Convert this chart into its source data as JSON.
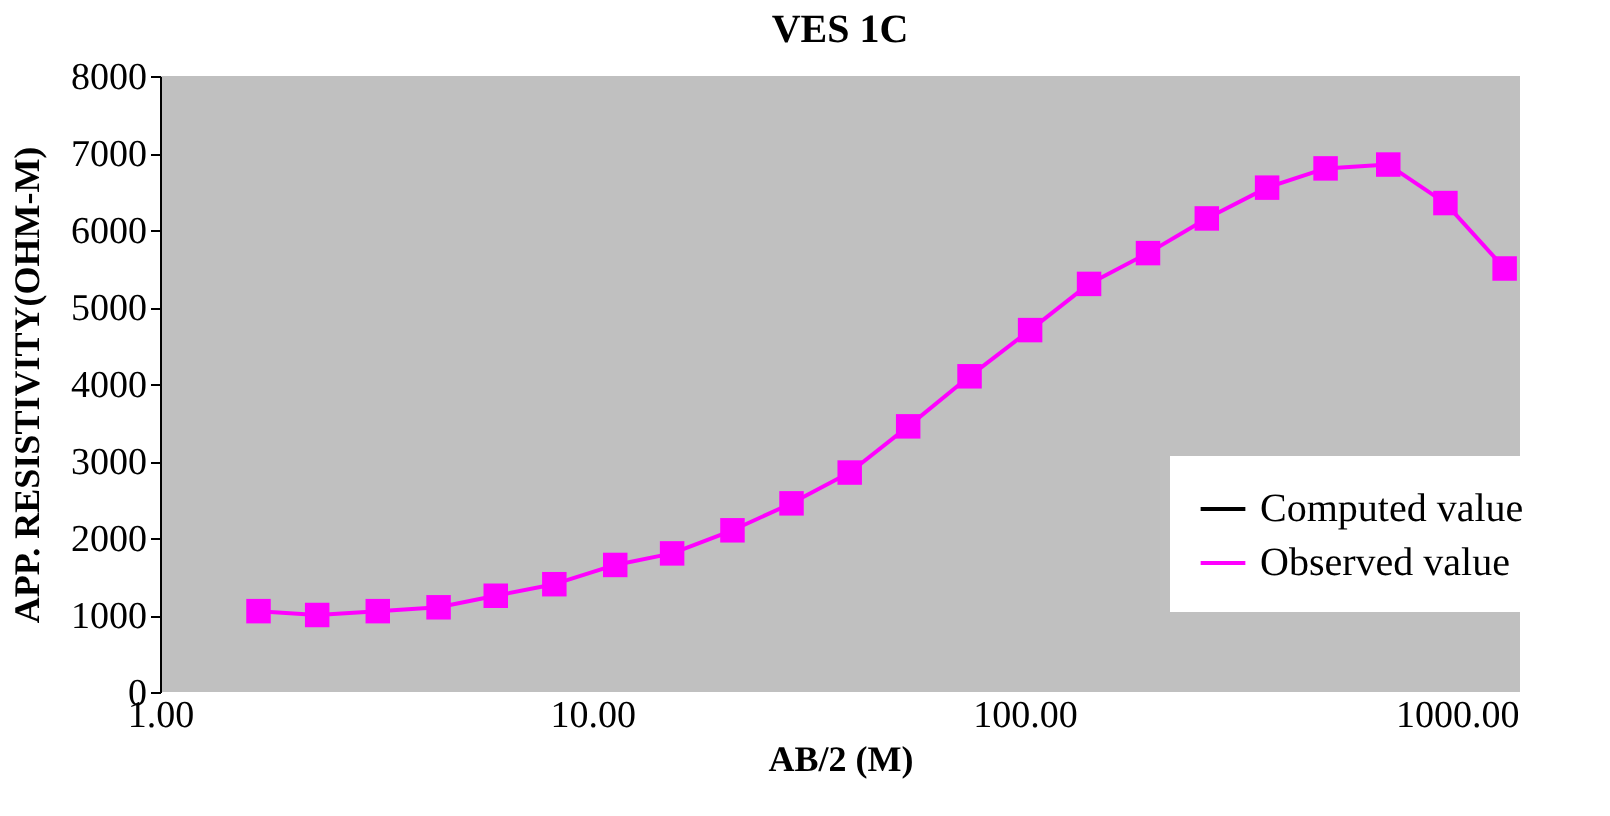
{
  "chart_data": {
    "type": "line",
    "title": "VES 1C",
    "xlabel": "AB/2 (M)",
    "ylabel": "APP. RESISTIVITY(OHM-M)",
    "x": [
      1.69,
      2.31,
      3.19,
      4.41,
      5.98,
      8.17,
      11.3,
      15.3,
      21.1,
      28.9,
      39.4,
      53.8,
      74.6,
      103,
      141,
      193,
      264,
      364,
      497,
      694,
      941,
      1290
    ],
    "series": [
      {
        "name": "Computed value",
        "color": "#000000",
        "values": [
          null,
          null,
          null,
          null,
          null,
          null,
          null,
          null,
          null,
          null,
          null,
          null,
          null,
          null,
          null,
          null,
          null,
          null,
          null,
          null,
          null,
          null
        ]
      },
      {
        "name": "Observed value",
        "color": "#ff00ff",
        "marker": "square",
        "line_style": "solid",
        "values": [
          1050,
          1000,
          1050,
          1100,
          1250,
          1400,
          1650,
          1800,
          2100,
          2450,
          2850,
          3450,
          4100,
          4700,
          5300,
          5700,
          6150,
          6550,
          6800,
          6850,
          6350,
          5500
        ]
      }
    ],
    "log": "x",
    "xlim": [
      1,
      1400
    ],
    "xticks": [
      {
        "value": 1,
        "label": "1.00"
      },
      {
        "value": 10,
        "label": "10.00"
      },
      {
        "value": 100,
        "label": "100.00"
      },
      {
        "value": 1000,
        "label": "1000.00"
      }
    ],
    "ylim": [
      0,
      8000
    ],
    "yticks": [
      0,
      1000,
      2000,
      3000,
      4000,
      5000,
      6000,
      7000,
      8000
    ],
    "grid": false,
    "legend": "bottom right"
  }
}
